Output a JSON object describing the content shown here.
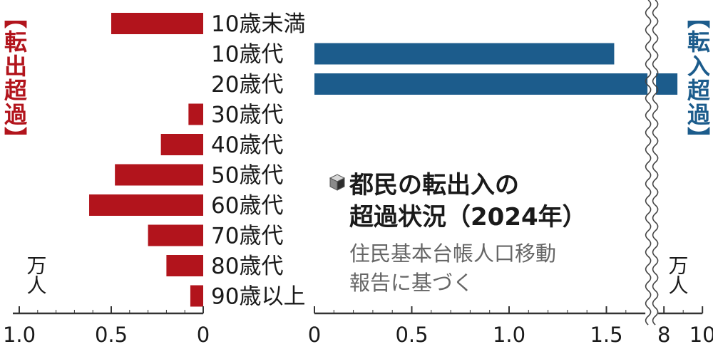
{
  "chart_data": {
    "type": "bar",
    "title": "都民の転出入の超過状況（2024年）",
    "source": "住民基本台帳人口移動報告に基づく",
    "outflow_label": "【転出超過】",
    "inflow_label": "【転入超過】",
    "unit_left": "万人",
    "unit_right": "万人",
    "colors": {
      "outflow": "#b2141c",
      "inflow": "#1c5c8c",
      "axis": "#333333"
    },
    "categories": [
      "10歳未満",
      "10歳代",
      "20歳代",
      "30歳代",
      "40歳代",
      "50歳代",
      "60歳代",
      "70歳代",
      "80歳代",
      "90歳以上"
    ],
    "series": [
      {
        "name": "転出超過",
        "values": [
          0.5,
          0,
          0,
          0.08,
          0.23,
          0.48,
          0.62,
          0.3,
          0.2,
          0.07
        ]
      },
      {
        "name": "転入超過",
        "values": [
          0,
          1.54,
          8.7,
          0,
          0,
          0,
          0,
          0,
          0,
          0
        ]
      }
    ],
    "left_axis": {
      "ticks": [
        "1.0",
        "0.5",
        "0"
      ],
      "range": [
        0,
        1.0
      ]
    },
    "right_axis": {
      "ticks": [
        "0",
        "0.5",
        "1.0",
        "1.5",
        "8",
        "10"
      ],
      "range": [
        0,
        10
      ],
      "break": [
        1.7,
        7.7
      ]
    }
  }
}
